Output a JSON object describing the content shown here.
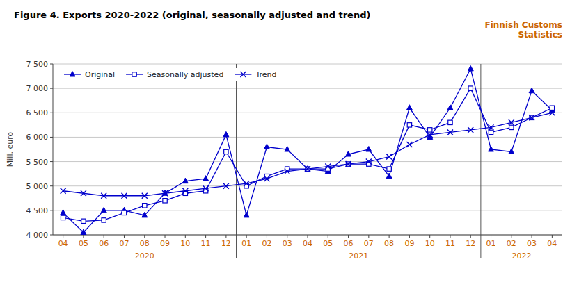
{
  "chart_data": {
    "type": "line",
    "title": "Figure 4. Exports 2020-2022 (original, seasonally adjusted and trend)",
    "annotations": [
      "Finnish Customs\nStatistics"
    ],
    "y_label": "Mill. euro",
    "categories": [
      "04",
      "05",
      "06",
      "07",
      "08",
      "09",
      "10",
      "11",
      "12",
      "01",
      "02",
      "03",
      "04",
      "05",
      "06",
      "07",
      "08",
      "09",
      "10",
      "11",
      "12",
      "01",
      "02",
      "03",
      "04"
    ],
    "groups": [
      {
        "label": "2020",
        "from": 0,
        "to": 8
      },
      {
        "label": "2021",
        "from": 9,
        "to": 20
      },
      {
        "label": "2022",
        "from": 21,
        "to": 24
      }
    ],
    "ylim": [
      4000,
      7500
    ],
    "yticks": [
      {
        "value": 4000,
        "label": "4 000"
      },
      {
        "value": 4500,
        "label": "4 500"
      },
      {
        "value": 5000,
        "label": "5 000"
      },
      {
        "value": 5500,
        "label": "5 500"
      },
      {
        "value": 6000,
        "label": "6 000"
      },
      {
        "value": 6500,
        "label": "6 500"
      },
      {
        "value": 7000,
        "label": "7 000"
      },
      {
        "value": 7500,
        "label": "7 500"
      }
    ],
    "grid": true,
    "legend": "upper left",
    "series": [
      {
        "name": "Original",
        "color": "#0000cc",
        "marker": "triangle",
        "values": [
          4450,
          4050,
          4500,
          4500,
          4400,
          4850,
          5100,
          5150,
          6050,
          4400,
          5800,
          5750,
          5350,
          5300,
          5650,
          5750,
          5200,
          6600,
          6000,
          6600,
          7400,
          5750,
          5700,
          6950,
          6550
        ]
      },
      {
        "name": "Seasonally adjusted",
        "color": "#0000cc",
        "marker": "square",
        "values": [
          4350,
          4280,
          4300,
          4450,
          4600,
          4700,
          4850,
          4900,
          5700,
          5000,
          5200,
          5350,
          5350,
          5350,
          5450,
          5450,
          5350,
          6250,
          6150,
          6300,
          7000,
          6100,
          6200,
          6400,
          6600
        ]
      },
      {
        "name": "Trend",
        "color": "#0000cc",
        "marker": "x",
        "values": [
          4900,
          4850,
          4800,
          4800,
          4800,
          4850,
          4900,
          4950,
          5000,
          5050,
          5150,
          5300,
          5350,
          5400,
          5450,
          5500,
          5600,
          5850,
          6050,
          6100,
          6150,
          6200,
          6300,
          6400,
          6500
        ]
      }
    ]
  }
}
